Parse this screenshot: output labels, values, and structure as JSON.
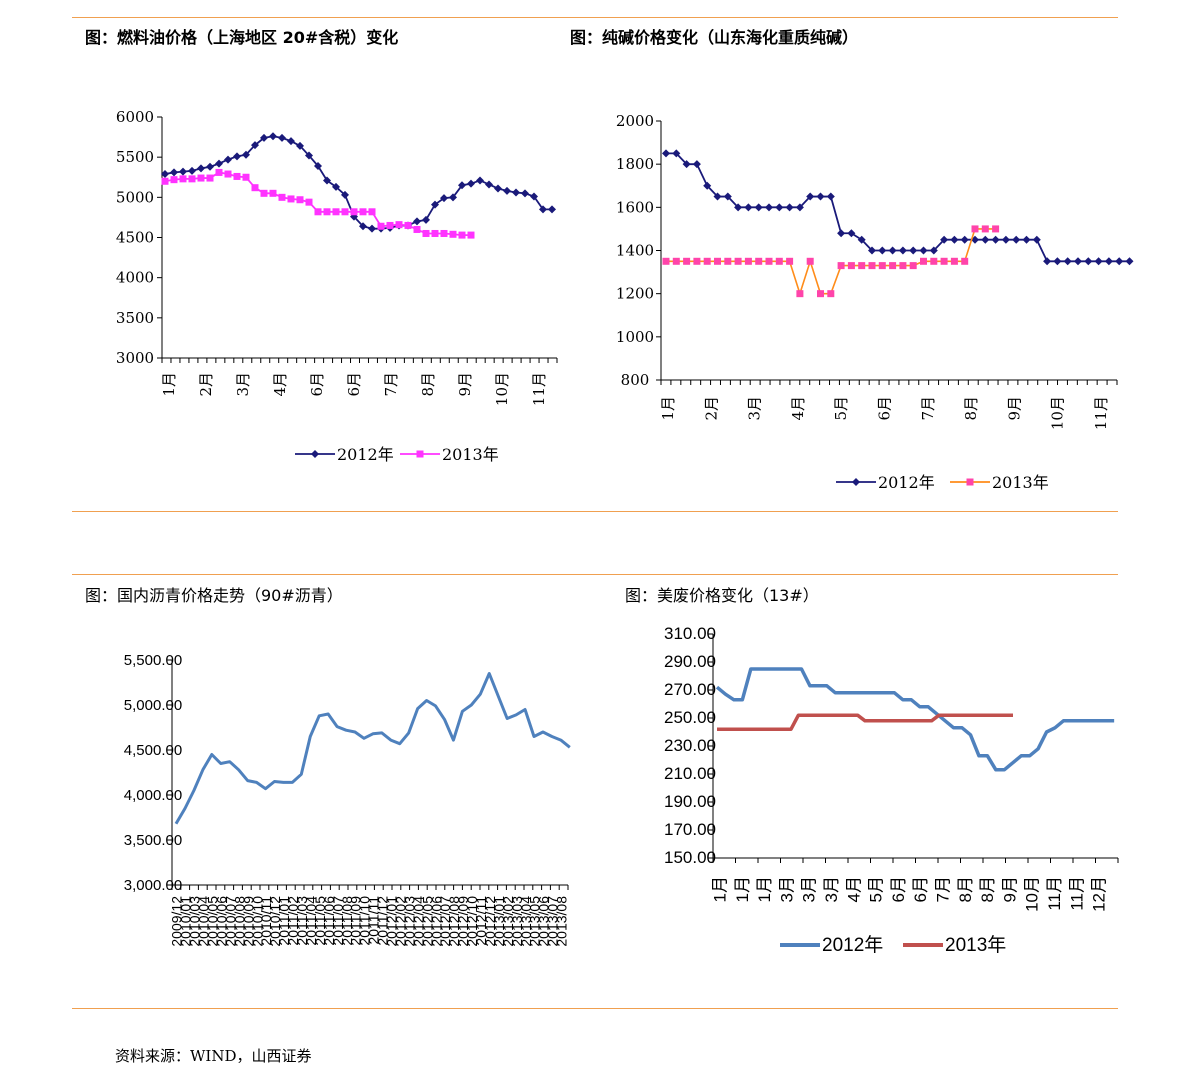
{
  "colors": {
    "rule": "#f0a050",
    "navy": "#1a1a7a",
    "magenta": "#ff33ff",
    "orange": "#ff8c1a",
    "pink": "#ff44aa",
    "blue": "#4f81bd",
    "red": "#c0504d"
  },
  "source": "资料来源：WIND，山西证券",
  "chart_data": [
    {
      "type": "line",
      "title": "图：燃料油价格（上海地区 20#含税）变化",
      "ylim": [
        3000,
        6000
      ],
      "yticks": [
        "3000",
        "3500",
        "4000",
        "4500",
        "5000",
        "5500",
        "6000"
      ],
      "xticks": [
        "1月",
        "2月",
        "3月",
        "4月",
        "6月",
        "6月",
        "7月",
        "8月",
        "9月",
        "10月",
        "11月"
      ],
      "series": [
        {
          "name": "2012年",
          "marker": "diamond",
          "values": [
            5290,
            5310,
            5320,
            5330,
            5360,
            5380,
            5420,
            5470,
            5510,
            5530,
            5650,
            5740,
            5760,
            5740,
            5700,
            5640,
            5520,
            5390,
            5210,
            5130,
            5030,
            4760,
            4640,
            4610,
            4610,
            4620,
            4650,
            4650,
            4700,
            4720,
            4910,
            4990,
            5000,
            5150,
            5170,
            5210,
            5160,
            5110,
            5080,
            5060,
            5050,
            5010,
            4850,
            4850
          ]
        },
        {
          "name": "2013年",
          "marker": "square",
          "values": [
            5200,
            5220,
            5230,
            5230,
            5240,
            5240,
            5310,
            5290,
            5260,
            5250,
            5120,
            5050,
            5050,
            5000,
            4980,
            4970,
            4940,
            4820,
            4820,
            4820,
            4820,
            4820,
            4820,
            4820,
            4640,
            4650,
            4660,
            4650,
            4600,
            4550,
            4550,
            4550,
            4540,
            4530,
            4530
          ]
        }
      ]
    },
    {
      "type": "line",
      "title": "图：纯碱价格变化（山东海化重质纯碱）",
      "ylim": [
        800,
        2000
      ],
      "yticks": [
        "800",
        "1000",
        "1200",
        "1400",
        "1600",
        "1800",
        "2000"
      ],
      "xticks": [
        "1月",
        "2月",
        "3月",
        "4月",
        "5月",
        "6月",
        "7月",
        "8月",
        "9月",
        "10月",
        "11月"
      ],
      "series": [
        {
          "name": "2012年",
          "marker": "diamond",
          "values": [
            1850,
            1850,
            1800,
            1800,
            1700,
            1650,
            1650,
            1600,
            1600,
            1600,
            1600,
            1600,
            1600,
            1600,
            1650,
            1650,
            1650,
            1480,
            1480,
            1450,
            1400,
            1400,
            1400,
            1400,
            1400,
            1400,
            1400,
            1450,
            1450,
            1450,
            1450,
            1450,
            1450,
            1450,
            1450,
            1450,
            1450,
            1350,
            1350,
            1350,
            1350,
            1350,
            1350,
            1350,
            1350,
            1350
          ]
        },
        {
          "name": "2013年",
          "marker": "square",
          "values": [
            1350,
            1350,
            1350,
            1350,
            1350,
            1350,
            1350,
            1350,
            1350,
            1350,
            1350,
            1350,
            1350,
            1200,
            1350,
            1200,
            1200,
            1330,
            1330,
            1330,
            1330,
            1330,
            1330,
            1330,
            1330,
            1350,
            1350,
            1350,
            1350,
            1350,
            1500,
            1500,
            1500
          ]
        }
      ]
    },
    {
      "type": "line",
      "title": "图：国内沥青价格走势（90#沥青）",
      "ylim": [
        3000,
        5500
      ],
      "yticks": [
        "3,000.00",
        "3,500.00",
        "4,000.00",
        "4,500.00",
        "5,000.00",
        "5,500.00"
      ],
      "xticks": [
        "2009/12",
        "2010/01",
        "2010/03",
        "2010/04",
        "2010/05",
        "2010/06",
        "2010/07",
        "2010/08",
        "2010/09",
        "2010/10",
        "2010/11",
        "2010/12",
        "2011/01",
        "2011/02",
        "2011/03",
        "2011/04",
        "2011/05",
        "2011/06",
        "2011/07",
        "2011/08",
        "2011/09",
        "2011/10",
        "2011/11",
        "2011/12",
        "2012/01",
        "2012/02",
        "2012/03",
        "2012/04",
        "2012/05",
        "2012/06",
        "2012/07",
        "2012/08",
        "2012/09",
        "2012/10",
        "2012/11",
        "2012/12",
        "2013/01",
        "2013/02",
        "2013/03",
        "2013/04",
        "2013/05",
        "2013/06",
        "2013/07",
        "2013/08"
      ],
      "series": [
        {
          "name": "90#沥青",
          "values": [
            3680,
            3850,
            4050,
            4280,
            4450,
            4350,
            4370,
            4280,
            4160,
            4140,
            4070,
            4150,
            4140,
            4140,
            4230,
            4650,
            4880,
            4900,
            4760,
            4720,
            4700,
            4630,
            4680,
            4690,
            4610,
            4570,
            4690,
            4960,
            5050,
            4990,
            4840,
            4610,
            4930,
            5000,
            5120,
            5350,
            5100,
            4850,
            4890,
            4950,
            4650,
            4700,
            4650,
            4610,
            4530
          ]
        }
      ]
    },
    {
      "type": "line",
      "title": "图：美废价格变化（13#）",
      "ylim": [
        150,
        310
      ],
      "yticks": [
        "150.00",
        "170.00",
        "190.00",
        "210.00",
        "230.00",
        "250.00",
        "270.00",
        "290.00",
        "310.00"
      ],
      "xticks": [
        "1月",
        "1月",
        "1月",
        "3月",
        "3月",
        "3月",
        "4月",
        "5月",
        "6月",
        "6月",
        "7月",
        "8月",
        "8月",
        "9月",
        "10月",
        "11月",
        "11月",
        "12月"
      ],
      "series": [
        {
          "name": "2012年",
          "values": [
            272,
            267,
            263,
            263,
            285,
            285,
            285,
            285,
            285,
            285,
            285,
            273,
            273,
            273,
            268,
            268,
            268,
            268,
            268,
            268,
            268,
            268,
            263,
            263,
            258,
            258,
            253,
            248,
            243,
            243,
            238,
            223,
            223,
            213,
            213,
            218,
            223,
            223,
            228,
            240,
            243,
            248,
            248,
            248,
            248,
            248,
            248,
            248
          ]
        },
        {
          "name": "2013年",
          "values": [
            242,
            242,
            242,
            242,
            242,
            242,
            242,
            242,
            242,
            242,
            242,
            252,
            252,
            252,
            252,
            252,
            252,
            252,
            252,
            252,
            248,
            248,
            248,
            248,
            248,
            248,
            248,
            248,
            248,
            248,
            252,
            252,
            252,
            252,
            252,
            252,
            252,
            252,
            252,
            252,
            252
          ]
        }
      ]
    }
  ]
}
